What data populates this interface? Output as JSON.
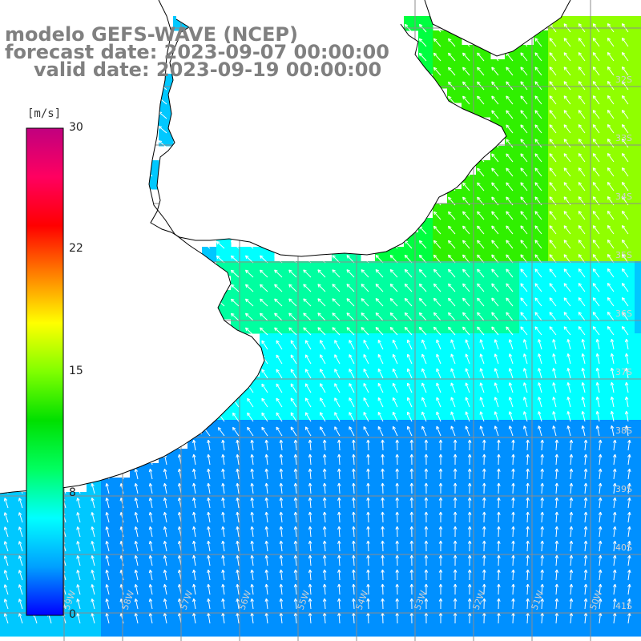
{
  "title": {
    "line1": "modelo GEFS-WAVE (NCEP)",
    "line2": "forecast date: 2023-09-07 00:00:00",
    "line3": "valid date: 2023-09-19 00:00:00"
  },
  "colorbar": {
    "unit": "[m/s]",
    "min": 0,
    "max": 30,
    "ticks": [
      "30",
      "22",
      "15",
      "8",
      "0"
    ],
    "tick_values": [
      30,
      22,
      15,
      8,
      0
    ],
    "colors": [
      "#0000ff",
      "#00a0ff",
      "#00ffff",
      "#00ff60",
      "#00e000",
      "#80ff00",
      "#ffff00",
      "#ff8000",
      "#ff0000",
      "#ff0060",
      "#c0007f"
    ]
  },
  "map": {
    "lat_labels": [
      "32S",
      "33S",
      "34S",
      "35S",
      "36S",
      "37S",
      "38S",
      "39S",
      "40S",
      "41S"
    ],
    "lon_labels": [
      "59W",
      "58W",
      "57W",
      "56W",
      "55W",
      "54W",
      "53W",
      "52W",
      "51W",
      "50W"
    ],
    "colors": {
      "land": "#ffffff",
      "coast": "#000000",
      "grid": "#8c8c8c",
      "arrow": "#ffffff"
    }
  }
}
